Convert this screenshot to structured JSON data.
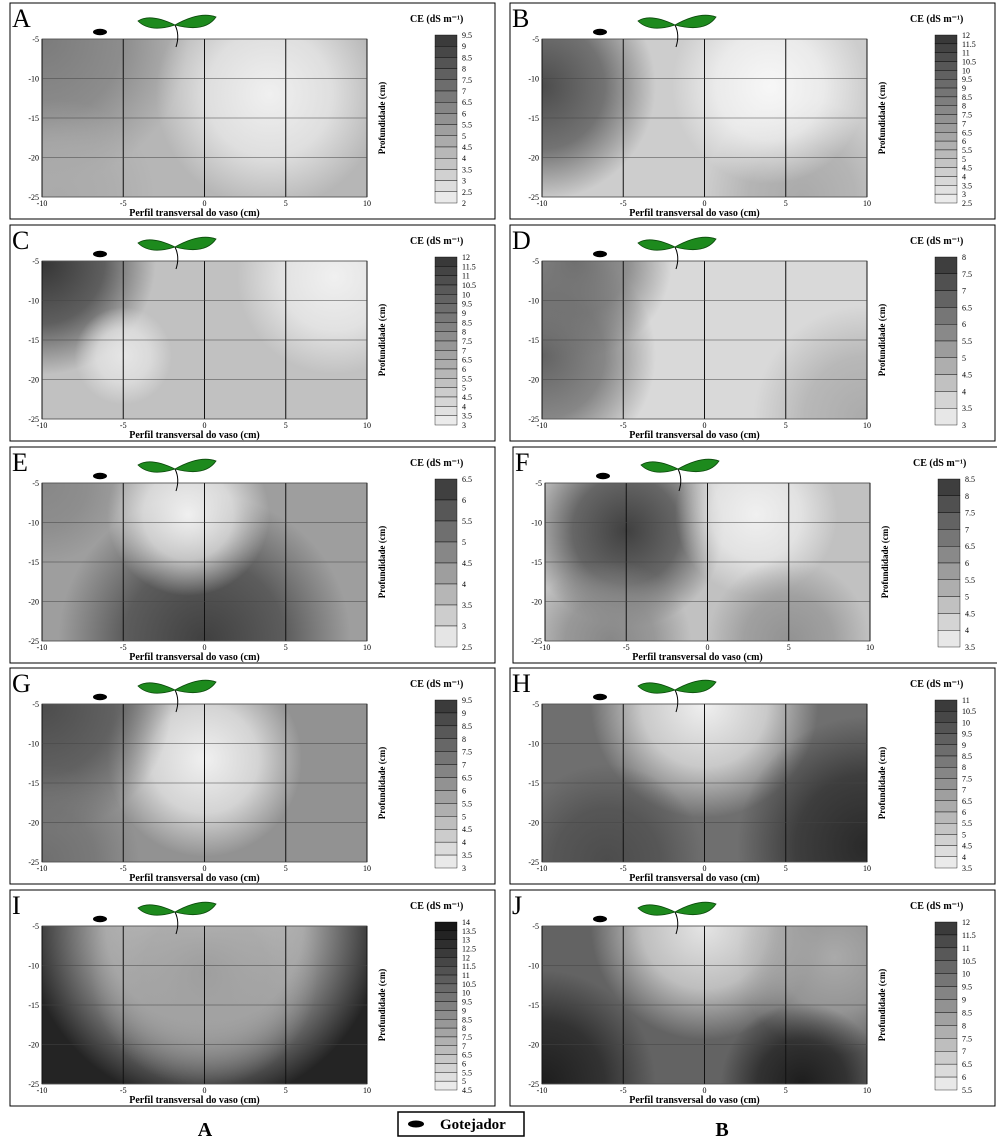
{
  "chart_data": [
    {
      "type": "contour",
      "title": "A",
      "colorbar_title": "CE (dS m⁻¹)",
      "xlabel": "Perfil transversal do vaso (cm)",
      "ylabel": "Profundidade (cm)",
      "xlim": [
        -10,
        10
      ],
      "ylim": [
        -25,
        -5
      ],
      "xticks": [
        -10,
        -5,
        0,
        5,
        10
      ],
      "yticks": [
        -5,
        -10,
        -15,
        -20,
        -25
      ],
      "grid": true,
      "levels": [
        9.5,
        9,
        8.5,
        8,
        7.5,
        7,
        6.5,
        6,
        5.5,
        5,
        4.5,
        4,
        3.5,
        3,
        2.5,
        2
      ]
    },
    {
      "type": "contour",
      "title": "B",
      "colorbar_title": "CE (dS m⁻¹)",
      "xlabel": "Perfil transversal do vaso (cm)",
      "ylabel": "Profundidade (cm)",
      "xlim": [
        -10,
        10
      ],
      "ylim": [
        -25,
        -5
      ],
      "xticks": [
        -10,
        -5,
        0,
        5,
        10
      ],
      "yticks": [
        -5,
        -10,
        -15,
        -20,
        -25
      ],
      "grid": true,
      "levels": [
        12,
        11.5,
        11,
        10.5,
        10,
        9.5,
        9,
        8.5,
        8,
        7.5,
        7,
        6.5,
        6,
        5.5,
        5,
        4.5,
        4,
        3.5,
        3,
        2.5
      ]
    },
    {
      "type": "contour",
      "title": "C",
      "colorbar_title": "CE (dS m⁻¹)",
      "xlabel": "Perfil transversal do vaso (cm)",
      "ylabel": "Profundidade (cm)",
      "xlim": [
        -10,
        10
      ],
      "ylim": [
        -25,
        -5
      ],
      "xticks": [
        -10,
        -5,
        0,
        5,
        10
      ],
      "yticks": [
        -5,
        -10,
        -15,
        -20,
        -25
      ],
      "grid": true,
      "levels": [
        12,
        11.5,
        11,
        10.5,
        10,
        9.5,
        9,
        8.5,
        8,
        7.5,
        7,
        6.5,
        6,
        5.5,
        5,
        4.5,
        4,
        3.5,
        3
      ]
    },
    {
      "type": "contour",
      "title": "D",
      "colorbar_title": "CE (dS m⁻¹)",
      "xlabel": "Perfil transversal do vaso (cm)",
      "ylabel": "Profundidade (cm)",
      "xlim": [
        -10,
        10
      ],
      "ylim": [
        -25,
        -5
      ],
      "xticks": [
        -10,
        -5,
        0,
        5,
        10
      ],
      "yticks": [
        -5,
        -10,
        -15,
        -20,
        -25
      ],
      "grid": true,
      "levels": [
        8,
        7.5,
        7,
        6.5,
        6,
        5.5,
        5,
        4.5,
        4,
        3.5,
        3
      ]
    },
    {
      "type": "contour",
      "title": "E",
      "colorbar_title": "CE (dS m⁻¹)",
      "xlabel": "Perfil transversal do vaso (cm)",
      "ylabel": "Profundidade (cm)",
      "xlim": [
        -10,
        10
      ],
      "ylim": [
        -25,
        -5
      ],
      "xticks": [
        -10,
        -5,
        0,
        5,
        10
      ],
      "yticks": [
        -5,
        -10,
        -15,
        -20,
        -25
      ],
      "grid": true,
      "levels": [
        6.5,
        6,
        5.5,
        5,
        4.5,
        4,
        3.5,
        3,
        2.5
      ]
    },
    {
      "type": "contour",
      "title": "F",
      "colorbar_title": "CE (dS m⁻¹)",
      "xlabel": "Perfil transversal do vaso (cm)",
      "ylabel": "Profundidade (cm)",
      "xlim": [
        -10,
        10
      ],
      "ylim": [
        -25,
        -5
      ],
      "xticks": [
        -10,
        -5,
        0,
        5,
        10
      ],
      "yticks": [
        -5,
        -10,
        -15,
        -20,
        -25
      ],
      "grid": true,
      "levels": [
        8.5,
        8,
        7.5,
        7,
        6.5,
        6,
        5.5,
        5,
        4.5,
        4,
        3.5
      ]
    },
    {
      "type": "contour",
      "title": "G",
      "colorbar_title": "CE (dS m⁻¹)",
      "xlabel": "Perfil transversal do vaso (cm)",
      "ylabel": "Profundidade (cm)",
      "xlim": [
        -10,
        10
      ],
      "ylim": [
        -25,
        -5
      ],
      "xticks": [
        -10,
        -5,
        0,
        5,
        10
      ],
      "yticks": [
        -5,
        -10,
        -15,
        -20,
        -25
      ],
      "grid": true,
      "levels": [
        9.5,
        9,
        8.5,
        8,
        7.5,
        7,
        6.5,
        6,
        5.5,
        5,
        4.5,
        4,
        3.5,
        3
      ]
    },
    {
      "type": "contour",
      "title": "H",
      "colorbar_title": "CE (dS m⁻¹)",
      "xlabel": "Perfil transversal do vaso (cm)",
      "ylabel": "Profundidade (cm)",
      "xlim": [
        -10,
        10
      ],
      "ylim": [
        -25,
        -5
      ],
      "xticks": [
        -10,
        -5,
        0,
        5,
        10
      ],
      "yticks": [
        -5,
        -10,
        -15,
        -20,
        -25
      ],
      "grid": true,
      "levels": [
        11,
        10.5,
        10,
        9.5,
        9,
        8.5,
        8,
        7.5,
        7,
        6.5,
        6,
        5.5,
        5,
        4.5,
        4,
        3.5
      ]
    },
    {
      "type": "contour",
      "title": "I",
      "colorbar_title": "CE (dS m⁻¹)",
      "xlabel": "Perfil transversal do vaso (cm)",
      "ylabel": "Profundidade (cm)",
      "xlim": [
        -10,
        10
      ],
      "ylim": [
        -25,
        -5
      ],
      "xticks": [
        -10,
        -5,
        0,
        5,
        10
      ],
      "yticks": [
        -5,
        -10,
        -15,
        -20,
        -25
      ],
      "grid": true,
      "levels": [
        14,
        13.5,
        13,
        12.5,
        12,
        11.5,
        11,
        10.5,
        10,
        9.5,
        9,
        8.5,
        8,
        7.5,
        7,
        6.5,
        6,
        5.5,
        5,
        4.5
      ]
    },
    {
      "type": "contour",
      "title": "J",
      "colorbar_title": "CE (dS m⁻¹)",
      "xlabel": "Perfil transversal do vaso (cm)",
      "ylabel": "Profundidade (cm)",
      "xlim": [
        -10,
        10
      ],
      "ylim": [
        -25,
        -5
      ],
      "xticks": [
        -10,
        -5,
        0,
        5,
        10
      ],
      "yticks": [
        -5,
        -10,
        -15,
        -20,
        -25
      ],
      "grid": true,
      "levels": [
        12,
        11.5,
        11,
        10.5,
        10,
        9.5,
        9,
        8.5,
        8,
        7.5,
        7,
        6.5,
        6,
        5.5
      ]
    }
  ],
  "figure_labels": [
    "A",
    "B"
  ],
  "legend_label": "Gotejador"
}
